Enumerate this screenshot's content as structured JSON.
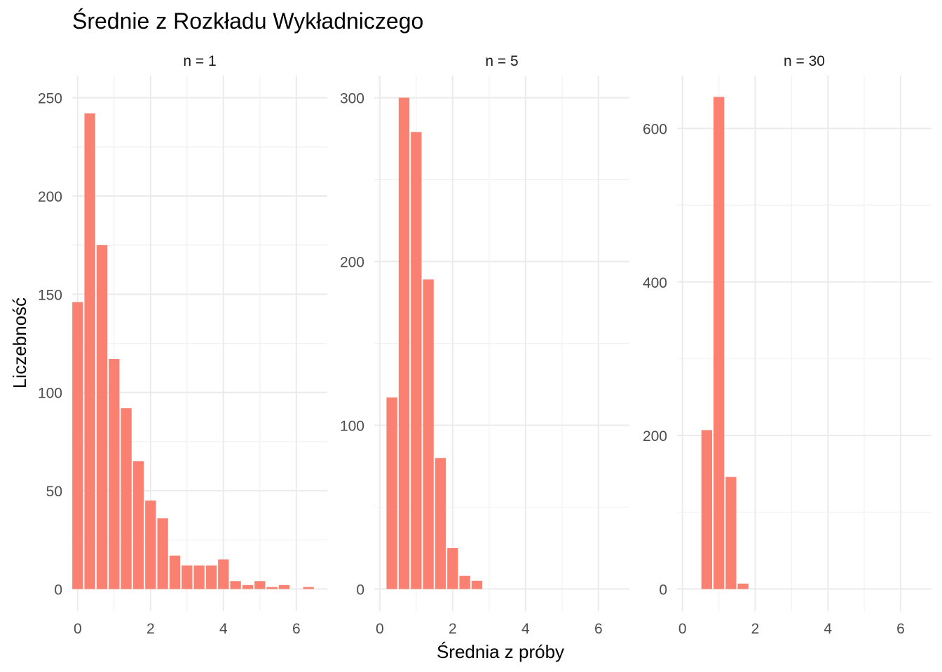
{
  "chart_data": {
    "type": "bar",
    "title": "Średnie z Rozkładu Wykładniczego",
    "xlabel": "Średnia z próby",
    "ylabel": "Liczebność",
    "bar_color": "#FA8072",
    "background": "#FFFFFF",
    "grid": true,
    "legend": "none",
    "xlim": [
      -0.15,
      6.85
    ],
    "x_ticks": [
      0,
      2,
      4,
      6
    ],
    "facets": [
      {
        "label": "n = 1",
        "ylim": [
          0,
          250
        ],
        "y_ticks": [
          0,
          50,
          100,
          150,
          200,
          250
        ],
        "bin_width": 0.333,
        "x": [
          0.0,
          0.333,
          0.667,
          1.0,
          1.333,
          1.667,
          2.0,
          2.333,
          2.667,
          3.0,
          3.333,
          3.667,
          4.0,
          4.333,
          4.667,
          5.0,
          5.333,
          5.667,
          6.0,
          6.333,
          6.667
        ],
        "values": [
          146,
          242,
          175,
          117,
          92,
          65,
          45,
          36,
          17,
          12,
          12,
          12,
          15,
          4,
          2,
          4,
          1,
          2,
          0,
          1,
          0
        ]
      },
      {
        "label": "n = 5",
        "ylim": [
          0,
          300
        ],
        "y_ticks": [
          0,
          100,
          200,
          300
        ],
        "bin_width": 0.333,
        "x": [
          0.333,
          0.667,
          1.0,
          1.333,
          1.667,
          2.0,
          2.333,
          2.667
        ],
        "values": [
          117,
          300,
          279,
          189,
          80,
          25,
          8,
          5
        ]
      },
      {
        "label": "n = 30",
        "ylim": [
          0,
          640
        ],
        "y_ticks": [
          0,
          200,
          400,
          600
        ],
        "bin_width": 0.333,
        "x": [
          0.667,
          1.0,
          1.333,
          1.667
        ],
        "values": [
          207,
          641,
          146,
          7
        ]
      }
    ]
  }
}
